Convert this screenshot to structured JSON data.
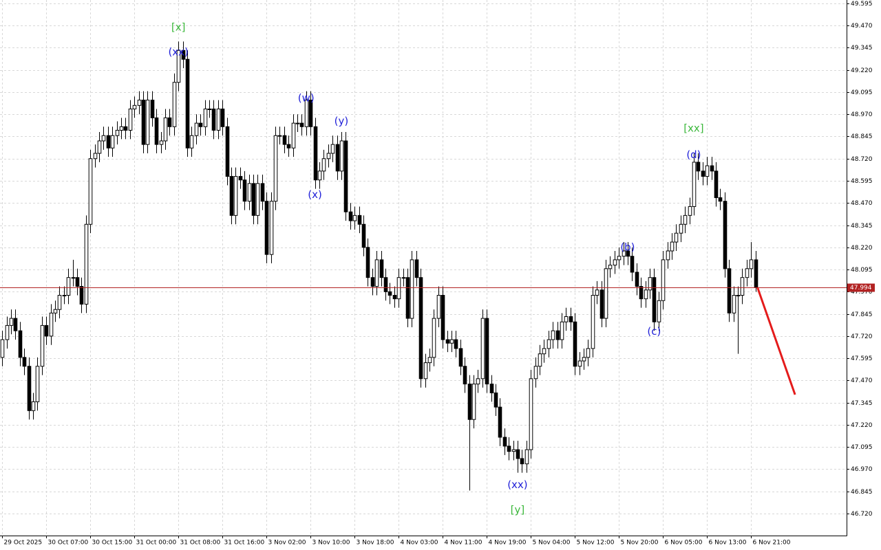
{
  "chart_data": {
    "type": "candlestick",
    "ylim": [
      46.596,
      49.614
    ],
    "yticks": [
      {
        "value": 46.72,
        "label": "46.720"
      },
      {
        "value": 46.845,
        "label": "46.845"
      },
      {
        "value": 46.97,
        "label": "46.970"
      },
      {
        "value": 47.095,
        "label": "47.095"
      },
      {
        "value": 47.22,
        "label": "47.220"
      },
      {
        "value": 47.345,
        "label": "47.345"
      },
      {
        "value": 47.47,
        "label": "47.470"
      },
      {
        "value": 47.595,
        "label": "47.595"
      },
      {
        "value": 47.72,
        "label": "47.720"
      },
      {
        "value": 47.845,
        "label": "47.845"
      },
      {
        "value": 47.97,
        "label": "47.970"
      },
      {
        "value": 48.095,
        "label": "48.095"
      },
      {
        "value": 48.22,
        "label": "48.220"
      },
      {
        "value": 48.345,
        "label": "48.345"
      },
      {
        "value": 48.47,
        "label": "48.470"
      },
      {
        "value": 48.595,
        "label": "48.595"
      },
      {
        "value": 48.72,
        "label": "48.720"
      },
      {
        "value": 48.845,
        "label": "48.845"
      },
      {
        "value": 48.97,
        "label": "48.970"
      },
      {
        "value": 49.095,
        "label": "49.095"
      },
      {
        "value": 49.22,
        "label": "49.220"
      },
      {
        "value": 49.345,
        "label": "49.345"
      },
      {
        "value": 49.47,
        "label": "49.470"
      },
      {
        "value": 49.595,
        "label": "49.595"
      }
    ],
    "xlim": [
      -0.5,
      191.7
    ],
    "xticks": [
      {
        "value": 0,
        "label": "29 Oct 2025"
      },
      {
        "value": 10,
        "label": "30 Oct 07:00"
      },
      {
        "value": 20,
        "label": "30 Oct 15:00"
      },
      {
        "value": 30,
        "label": "31 Oct 00:00"
      },
      {
        "value": 40,
        "label": "31 Oct 08:00"
      },
      {
        "value": 50,
        "label": "31 Oct 16:00"
      },
      {
        "value": 60,
        "label": "3 Nov 02:00"
      },
      {
        "value": 70,
        "label": "3 Nov 10:00"
      },
      {
        "value": 80,
        "label": "3 Nov 18:00"
      },
      {
        "value": 90,
        "label": "4 Nov 03:00"
      },
      {
        "value": 100,
        "label": "4 Nov 11:00"
      },
      {
        "value": 110,
        "label": "4 Nov 19:00"
      },
      {
        "value": 120,
        "label": "5 Nov 04:00"
      },
      {
        "value": 130,
        "label": "5 Nov 12:00"
      },
      {
        "value": 140,
        "label": "5 Nov 20:00"
      },
      {
        "value": 150,
        "label": "6 Nov 05:00"
      },
      {
        "value": 160,
        "label": "6 Nov 13:00"
      },
      {
        "value": 170,
        "label": "6 Nov 21:00"
      }
    ],
    "grid": true,
    "bull_color": "#ffffff",
    "bear_color": "#000000",
    "open": [
      47.6,
      47.7,
      47.78,
      47.82,
      47.75,
      47.6,
      47.55,
      47.3,
      47.35,
      47.55,
      47.78,
      47.72,
      47.85,
      47.87,
      47.95,
      47.95,
      48.05,
      48.05,
      48.0,
      47.9,
      48.35,
      48.72,
      48.75,
      48.82,
      48.85,
      48.78,
      48.85,
      48.88,
      48.9,
      48.88,
      49.0,
      49.02,
      49.05,
      48.8,
      49.05,
      48.95,
      48.8,
      48.82,
      48.95,
      48.9,
      49.15,
      49.33,
      49.28,
      48.78,
      48.85,
      48.92,
      48.9,
      49.0,
      49.0,
      48.88,
      49.0,
      48.9,
      48.62,
      48.4,
      48.62,
      48.6,
      48.48,
      48.58,
      48.4,
      48.58,
      48.48,
      48.18,
      48.48,
      48.85,
      48.85,
      48.8,
      48.78,
      48.92,
      48.92,
      48.9,
      49.05,
      48.9,
      48.6,
      48.65,
      48.72,
      48.75,
      48.8,
      48.65,
      48.82,
      48.42,
      48.37,
      48.4,
      48.35,
      48.22,
      48.05,
      48.0,
      48.15,
      48.05,
      47.97,
      47.95,
      47.93,
      48.05,
      48.05,
      47.82,
      48.15,
      48.05,
      47.48,
      47.57,
      47.6,
      47.82,
      47.95,
      47.7,
      47.68,
      47.7,
      47.65,
      47.55,
      47.45,
      47.25,
      47.45,
      47.48,
      47.82,
      47.45,
      47.4,
      47.32,
      47.15,
      47.1,
      47.07,
      47.08,
      47.03,
      47.0,
      47.08,
      47.48,
      47.55,
      47.62,
      47.65,
      47.7,
      47.75,
      47.7,
      47.8,
      47.83,
      47.8,
      47.55,
      47.58,
      47.6,
      47.65,
      47.95,
      47.98,
      47.82,
      48.1,
      48.12,
      48.15,
      48.17,
      48.2,
      48.17,
      48.08,
      48.0,
      47.93,
      47.98,
      48.05,
      47.8,
      47.92,
      48.15,
      48.2,
      48.25,
      48.3,
      48.35,
      48.4,
      48.45,
      48.7,
      48.65,
      48.62,
      48.68,
      48.65,
      48.5,
      48.48,
      48.1,
      47.85,
      47.95,
      47.95,
      48.05,
      48.1,
      48.15
    ],
    "high": [
      47.75,
      47.83,
      47.87,
      47.87,
      47.8,
      47.65,
      47.6,
      47.4,
      47.6,
      47.83,
      47.83,
      47.9,
      47.92,
      48.0,
      48.0,
      48.1,
      48.15,
      48.1,
      48.05,
      48.4,
      48.77,
      48.8,
      48.87,
      48.9,
      48.9,
      48.9,
      48.93,
      48.95,
      48.95,
      49.05,
      49.07,
      49.1,
      49.1,
      49.1,
      49.1,
      49.0,
      48.87,
      49.0,
      49.0,
      49.2,
      49.38,
      49.38,
      49.33,
      48.9,
      48.97,
      48.97,
      49.05,
      49.05,
      49.05,
      49.05,
      49.05,
      48.95,
      48.67,
      48.67,
      48.67,
      48.65,
      48.63,
      48.63,
      48.63,
      48.63,
      48.53,
      48.53,
      48.9,
      48.9,
      48.9,
      48.85,
      48.97,
      48.97,
      48.97,
      49.1,
      49.1,
      48.95,
      48.7,
      48.77,
      48.8,
      48.85,
      48.85,
      48.87,
      48.87,
      48.47,
      48.45,
      48.45,
      48.4,
      48.27,
      48.1,
      48.2,
      48.2,
      48.1,
      48.02,
      48.0,
      48.1,
      48.1,
      48.1,
      48.2,
      48.2,
      48.1,
      47.62,
      47.65,
      47.87,
      48.0,
      48.0,
      47.75,
      47.75,
      47.75,
      47.7,
      47.6,
      47.5,
      47.5,
      47.53,
      47.87,
      47.87,
      47.5,
      47.45,
      47.37,
      47.2,
      47.15,
      47.13,
      47.13,
      47.08,
      47.13,
      47.53,
      47.6,
      47.67,
      47.7,
      47.75,
      47.8,
      47.8,
      47.85,
      47.88,
      47.88,
      47.85,
      47.63,
      47.65,
      47.7,
      48.0,
      48.03,
      48.03,
      48.15,
      48.17,
      48.2,
      48.22,
      48.25,
      48.25,
      48.22,
      48.13,
      48.05,
      48.03,
      48.1,
      48.1,
      47.97,
      48.2,
      48.25,
      48.3,
      48.35,
      48.4,
      48.45,
      48.5,
      48.75,
      48.75,
      48.7,
      48.73,
      48.73,
      48.7,
      48.55,
      48.53,
      48.15,
      48.0,
      48.0,
      48.1,
      48.15,
      48.25,
      48.2
    ],
    "low": [
      47.55,
      47.65,
      47.73,
      47.7,
      47.55,
      47.5,
      47.25,
      47.25,
      47.3,
      47.5,
      47.67,
      47.67,
      47.8,
      47.82,
      47.9,
      47.9,
      48.0,
      47.95,
      47.85,
      47.85,
      48.3,
      48.67,
      48.7,
      48.77,
      48.73,
      48.73,
      48.8,
      48.83,
      48.83,
      48.83,
      48.95,
      48.97,
      48.75,
      48.75,
      48.9,
      48.75,
      48.75,
      48.77,
      48.85,
      48.85,
      49.1,
      49.23,
      48.73,
      48.73,
      48.8,
      48.85,
      48.85,
      48.95,
      48.83,
      48.83,
      48.85,
      48.57,
      48.35,
      48.35,
      48.55,
      48.43,
      48.43,
      48.35,
      48.35,
      48.43,
      48.13,
      48.13,
      48.43,
      48.8,
      48.75,
      48.73,
      48.73,
      48.87,
      48.85,
      48.85,
      48.85,
      48.55,
      48.55,
      48.6,
      48.67,
      48.7,
      48.6,
      48.6,
      48.37,
      48.32,
      48.32,
      48.3,
      48.17,
      48.0,
      47.95,
      47.95,
      48.0,
      47.92,
      47.9,
      47.88,
      47.88,
      48.0,
      47.77,
      47.77,
      48.0,
      47.43,
      47.43,
      47.52,
      47.55,
      47.77,
      47.65,
      47.63,
      47.63,
      47.6,
      47.5,
      47.4,
      46.85,
      47.2,
      47.4,
      47.43,
      47.4,
      47.35,
      47.27,
      47.1,
      47.05,
      47.02,
      47.02,
      46.95,
      46.95,
      46.95,
      47.03,
      47.43,
      47.5,
      47.57,
      47.6,
      47.65,
      47.65,
      47.65,
      47.75,
      47.75,
      47.5,
      47.5,
      47.53,
      47.55,
      47.6,
      47.9,
      47.77,
      47.77,
      48.05,
      48.07,
      48.1,
      48.12,
      48.12,
      48.03,
      47.95,
      47.88,
      47.88,
      47.93,
      47.75,
      47.75,
      47.87,
      48.1,
      48.15,
      48.2,
      48.25,
      48.3,
      48.35,
      48.4,
      48.6,
      48.57,
      48.57,
      48.6,
      48.45,
      48.43,
      48.05,
      47.8,
      47.8,
      47.62,
      47.9,
      48.0,
      48.05,
      47.97
    ],
    "close": [
      47.7,
      47.78,
      47.82,
      47.75,
      47.6,
      47.55,
      47.3,
      47.35,
      47.55,
      47.78,
      47.72,
      47.85,
      47.87,
      47.95,
      47.95,
      48.05,
      48.05,
      48.0,
      47.9,
      48.35,
      48.72,
      48.75,
      48.82,
      48.85,
      48.78,
      48.85,
      48.88,
      48.9,
      48.88,
      49.0,
      49.02,
      49.05,
      48.8,
      49.05,
      48.95,
      48.8,
      48.82,
      48.95,
      48.9,
      49.15,
      49.33,
      49.28,
      48.78,
      48.85,
      48.92,
      48.9,
      49.0,
      49.0,
      48.88,
      49.0,
      48.9,
      48.62,
      48.4,
      48.62,
      48.6,
      48.48,
      48.58,
      48.4,
      48.58,
      48.48,
      48.18,
      48.48,
      48.85,
      48.85,
      48.8,
      48.78,
      48.92,
      48.92,
      48.9,
      49.05,
      48.9,
      48.6,
      48.65,
      48.72,
      48.75,
      48.8,
      48.65,
      48.82,
      48.42,
      48.37,
      48.4,
      48.35,
      48.22,
      48.05,
      48.0,
      48.15,
      48.05,
      47.97,
      47.95,
      47.93,
      48.05,
      48.05,
      47.82,
      48.15,
      48.05,
      47.48,
      47.57,
      47.6,
      47.82,
      47.95,
      47.7,
      47.68,
      47.7,
      47.65,
      47.55,
      47.45,
      47.25,
      47.45,
      47.48,
      47.82,
      47.45,
      47.4,
      47.32,
      47.15,
      47.1,
      47.07,
      47.08,
      47.03,
      47.0,
      47.08,
      47.48,
      47.55,
      47.62,
      47.65,
      47.7,
      47.75,
      47.7,
      47.8,
      47.83,
      47.8,
      47.55,
      47.58,
      47.6,
      47.65,
      47.95,
      47.98,
      47.82,
      48.1,
      48.12,
      48.15,
      48.17,
      48.2,
      48.17,
      48.08,
      48.0,
      47.93,
      47.98,
      48.05,
      47.8,
      47.92,
      48.15,
      48.2,
      48.25,
      48.3,
      48.35,
      48.4,
      48.45,
      48.7,
      48.65,
      48.62,
      48.68,
      48.65,
      48.5,
      48.48,
      48.1,
      47.85,
      47.95,
      47.95,
      48.05,
      48.1,
      48.15,
      47.994
    ],
    "current_price": {
      "value": 47.994,
      "label": "47.994",
      "color": "#b22222"
    },
    "forecast": {
      "from_index": 171,
      "from": 47.994,
      "to_index": 180,
      "to": 47.39,
      "color": "#e41b1b"
    },
    "annotations": [
      {
        "text": "[x]",
        "index": 40,
        "value": 49.46,
        "color": "#3cb83c"
      },
      {
        "text": "(xx)",
        "index": 40,
        "value": 49.32,
        "color": "#1f1fd8"
      },
      {
        "text": "(w)",
        "index": 69,
        "value": 49.06,
        "color": "#1f1fd8"
      },
      {
        "text": "(y)",
        "index": 77,
        "value": 48.93,
        "color": "#1f1fd8"
      },
      {
        "text": "(x)",
        "index": 71,
        "value": 48.515,
        "color": "#1f1fd8"
      },
      {
        "text": "(xx)",
        "index": 117,
        "value": 46.88,
        "color": "#1f1fd8"
      },
      {
        "text": "[y]",
        "index": 117,
        "value": 46.74,
        "color": "#3cb83c"
      },
      {
        "text": "(b)",
        "index": 142,
        "value": 48.22,
        "color": "#1f1fd8"
      },
      {
        "text": "(c)",
        "index": 148,
        "value": 47.745,
        "color": "#1f1fd8"
      },
      {
        "text": "[xx]",
        "index": 157,
        "value": 48.89,
        "color": "#3cb83c"
      },
      {
        "text": "(d)",
        "index": 157,
        "value": 48.74,
        "color": "#1f1fd8"
      }
    ]
  }
}
